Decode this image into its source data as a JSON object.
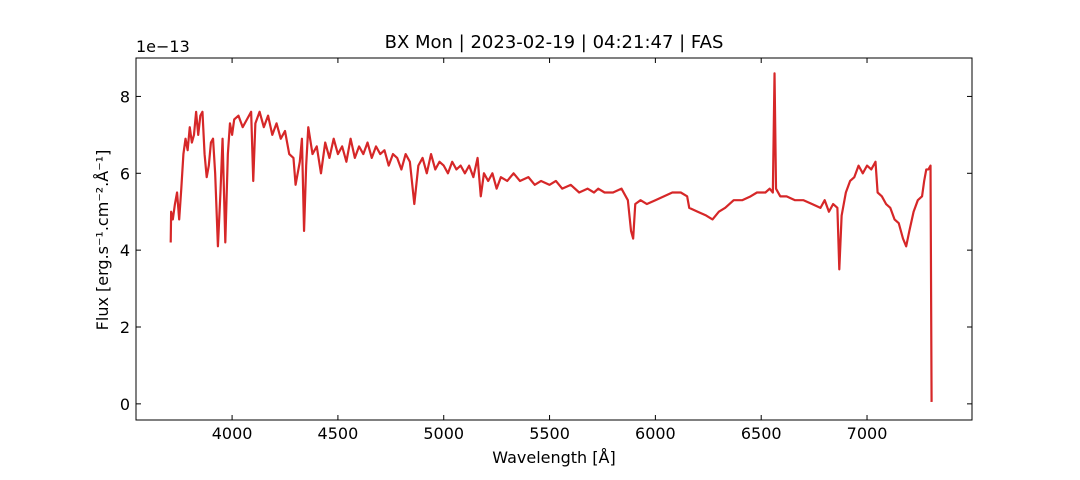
{
  "chart_data": {
    "type": "line",
    "title": "BX Mon | 2023-02-19 | 04:21:47 | FAS",
    "xlabel": "Wavelength [Å]",
    "ylabel": "Flux [erg.s⁻¹.cm⁻².Å⁻¹]",
    "y_offset_text": "1e−13",
    "color": "#d62728",
    "xlim": [
      3546,
      7496
    ],
    "ylim": [
      -0.42,
      9.0
    ],
    "xticks": [
      4000,
      4500,
      5000,
      5500,
      6000,
      6500,
      7000
    ],
    "yticks": [
      0,
      2,
      4,
      6,
      8
    ],
    "x": [
      3710,
      3712,
      3720,
      3730,
      3740,
      3750,
      3760,
      3770,
      3780,
      3790,
      3800,
      3810,
      3820,
      3830,
      3840,
      3850,
      3860,
      3870,
      3880,
      3890,
      3900,
      3910,
      3920,
      3933,
      3945,
      3955,
      3968,
      3980,
      3990,
      4000,
      4010,
      4030,
      4050,
      4070,
      4090,
      4100,
      4110,
      4130,
      4150,
      4170,
      4190,
      4210,
      4230,
      4250,
      4270,
      4290,
      4300,
      4320,
      4330,
      4340,
      4350,
      4360,
      4380,
      4400,
      4420,
      4440,
      4460,
      4480,
      4500,
      4520,
      4540,
      4560,
      4580,
      4600,
      4620,
      4640,
      4660,
      4680,
      4700,
      4720,
      4740,
      4760,
      4780,
      4800,
      4820,
      4840,
      4861,
      4880,
      4900,
      4920,
      4940,
      4960,
      4980,
      5000,
      5020,
      5040,
      5060,
      5080,
      5100,
      5120,
      5140,
      5160,
      5175,
      5190,
      5210,
      5230,
      5250,
      5270,
      5300,
      5330,
      5360,
      5400,
      5430,
      5460,
      5500,
      5530,
      5560,
      5600,
      5640,
      5680,
      5710,
      5730,
      5760,
      5800,
      5840,
      5870,
      5885,
      5895,
      5905,
      5930,
      5960,
      6000,
      6040,
      6080,
      6120,
      6150,
      6160,
      6200,
      6240,
      6270,
      6300,
      6330,
      6370,
      6410,
      6450,
      6480,
      6520,
      6540,
      6555,
      6563,
      6570,
      6590,
      6620,
      6660,
      6700,
      6740,
      6780,
      6800,
      6820,
      6840,
      6860,
      6869,
      6880,
      6890,
      6900,
      6920,
      6940,
      6960,
      6980,
      7000,
      7020,
      7040,
      7050,
      7070,
      7090,
      7110,
      7130,
      7150,
      7170,
      7185,
      7200,
      7220,
      7240,
      7260,
      7270,
      7280,
      7290,
      7300,
      7305
    ],
    "values": [
      4.2,
      5.0,
      4.8,
      5.2,
      5.5,
      4.8,
      5.6,
      6.5,
      6.9,
      6.6,
      7.2,
      6.8,
      7.0,
      7.6,
      7.0,
      7.5,
      7.6,
      6.5,
      5.9,
      6.2,
      6.8,
      6.9,
      6.0,
      4.1,
      5.5,
      6.9,
      4.2,
      6.5,
      7.3,
      7.0,
      7.4,
      7.5,
      7.2,
      7.4,
      7.6,
      5.8,
      7.3,
      7.6,
      7.2,
      7.5,
      7.0,
      7.3,
      6.9,
      7.1,
      6.5,
      6.4,
      5.7,
      6.3,
      6.9,
      4.5,
      6.2,
      7.2,
      6.5,
      6.7,
      6.0,
      6.8,
      6.4,
      6.9,
      6.5,
      6.7,
      6.3,
      6.9,
      6.4,
      6.7,
      6.5,
      6.8,
      6.4,
      6.7,
      6.5,
      6.6,
      6.2,
      6.5,
      6.4,
      6.1,
      6.5,
      6.3,
      5.2,
      6.2,
      6.4,
      6.0,
      6.5,
      6.1,
      6.3,
      6.2,
      6.0,
      6.3,
      6.1,
      6.2,
      6.0,
      6.2,
      5.9,
      6.4,
      5.4,
      6.0,
      5.8,
      6.0,
      5.6,
      5.9,
      5.8,
      6.0,
      5.8,
      5.9,
      5.7,
      5.8,
      5.7,
      5.8,
      5.6,
      5.7,
      5.5,
      5.6,
      5.5,
      5.6,
      5.5,
      5.5,
      5.6,
      5.3,
      4.5,
      4.3,
      5.2,
      5.3,
      5.2,
      5.3,
      5.4,
      5.5,
      5.5,
      5.4,
      5.1,
      5.0,
      4.9,
      4.8,
      5.0,
      5.1,
      5.3,
      5.3,
      5.4,
      5.5,
      5.5,
      5.6,
      5.5,
      8.6,
      5.6,
      5.4,
      5.4,
      5.3,
      5.3,
      5.2,
      5.1,
      5.3,
      5.0,
      5.2,
      5.1,
      3.5,
      4.9,
      5.2,
      5.5,
      5.8,
      5.9,
      6.2,
      6.0,
      6.2,
      6.1,
      6.3,
      5.5,
      5.4,
      5.2,
      5.1,
      4.8,
      4.7,
      4.3,
      4.1,
      4.5,
      5.0,
      5.3,
      5.4,
      5.8,
      6.1,
      6.1,
      6.2,
      0.05
    ]
  }
}
